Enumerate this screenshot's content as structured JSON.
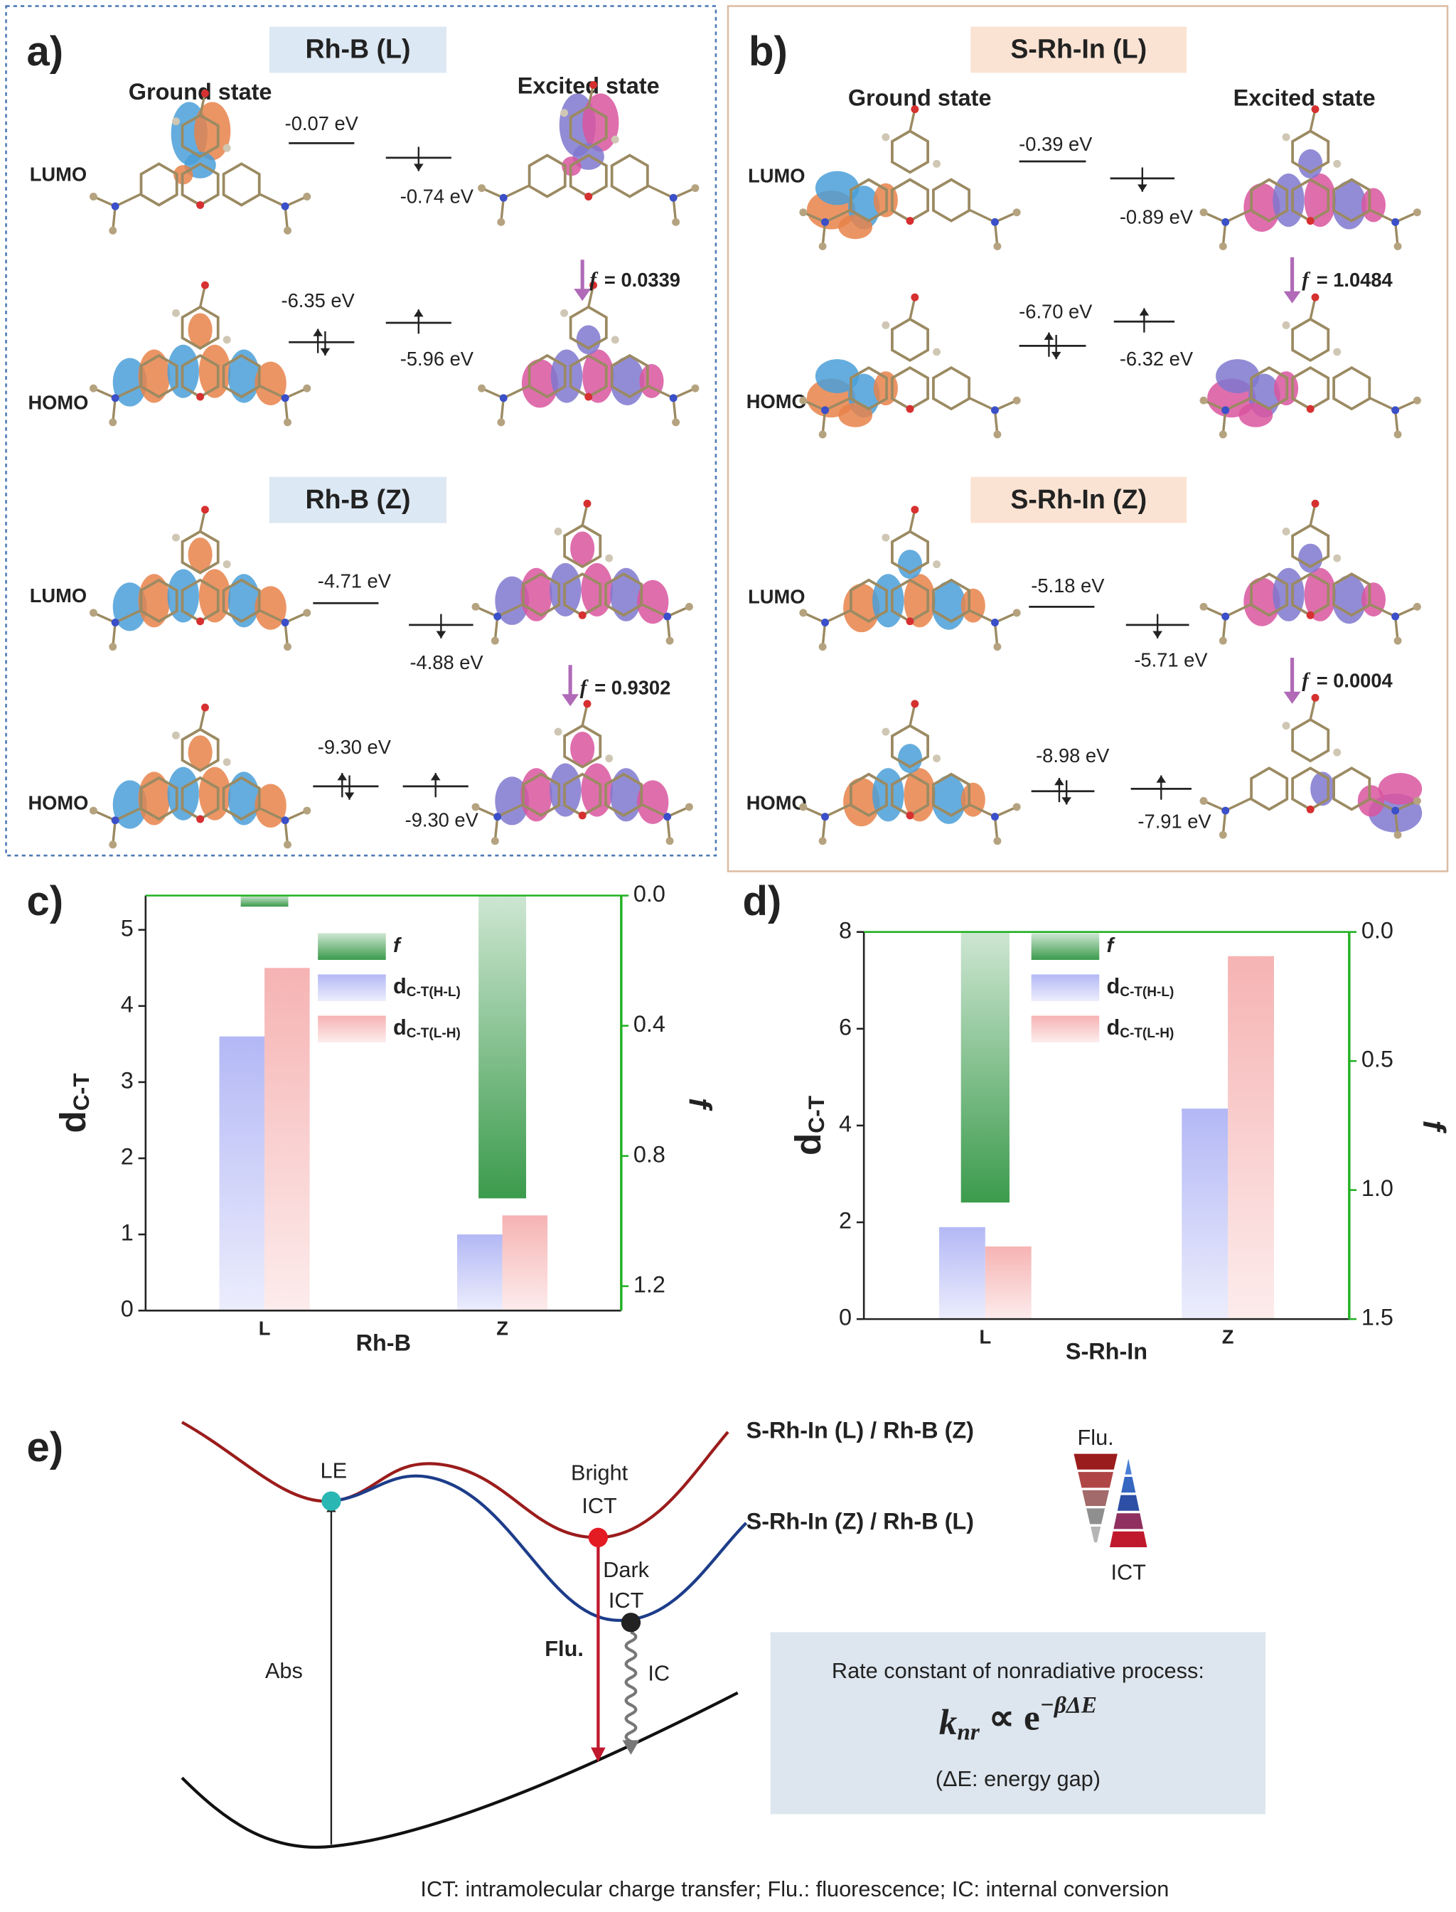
{
  "orbital_panels": [
    {
      "label": "a)",
      "ground_label": "Ground state",
      "excited_label": "Excited state",
      "sections": [
        {
          "title": "Rh-B (L)",
          "lumo_label": "LUMO",
          "homo_label": "HOMO",
          "ground_lumo": "-0.07 eV",
          "excited_lumo": "-0.74 eV",
          "ground_homo": "-6.35 eV",
          "excited_homo": "-5.96 eV",
          "f_symbol": "f",
          "f_text": "= 0.0339"
        },
        {
          "title": "Rh-B (Z)",
          "lumo_label": "LUMO",
          "homo_label": "HOMO",
          "ground_lumo": "-4.71 eV",
          "excited_lumo": "-4.88 eV",
          "ground_homo": "-9.30 eV",
          "excited_homo": "-9.30 eV",
          "f_symbol": "f",
          "f_text": "= 0.9302"
        }
      ]
    },
    {
      "label": "b)",
      "ground_label": "Ground state",
      "excited_label": "Excited state",
      "sections": [
        {
          "title": "S-Rh-In (L)",
          "lumo_label": "LUMO",
          "homo_label": "HOMO",
          "ground_lumo": "-0.39 eV",
          "excited_lumo": "-0.89 eV",
          "ground_homo": "-6.70 eV",
          "excited_homo": "-6.32 eV",
          "f_symbol": "f",
          "f_text": "= 1.0484"
        },
        {
          "title": "S-Rh-In (Z)",
          "lumo_label": "LUMO",
          "homo_label": "HOMO",
          "ground_lumo": "-5.18 eV",
          "excited_lumo": "-5.71 eV",
          "ground_homo": "-8.98 eV",
          "excited_homo": "-7.91 eV",
          "f_symbol": "f",
          "f_text": "= 0.0004"
        }
      ]
    }
  ],
  "chart_data": [
    {
      "type": "bar",
      "panel_label": "c)",
      "x_label": "Rh-B",
      "y_label": "dC-T",
      "y2_label": "f",
      "categories": [
        "L",
        "Z"
      ],
      "ylim": [
        0,
        5.45
      ],
      "yticks": [
        0,
        1,
        2,
        3,
        4,
        5
      ],
      "y2lim": [
        1.275,
        0
      ],
      "y2ticks": [
        {
          "value": 0,
          "label": "0.0"
        },
        0.4,
        0.8,
        1.2
      ],
      "y2_color": "#22b022",
      "series": [
        {
          "name": "f",
          "color": "#3b9b4c",
          "axis": "y2",
          "values": [
            0.0339,
            0.9302
          ]
        },
        {
          "name": "dC-T(H-L)",
          "color": "#b3b8f5",
          "values": [
            3.6,
            1.0
          ]
        },
        {
          "name": "dC-T(L-H)",
          "color": "#f6b3b3",
          "values": [
            4.5,
            1.25
          ]
        }
      ]
    },
    {
      "type": "bar",
      "panel_label": "d)",
      "x_label": "S-Rh-In",
      "y_label": "dC-T",
      "y2_label": "f",
      "categories": [
        "L",
        "Z"
      ],
      "ylim": [
        0,
        8
      ],
      "yticks": [
        0,
        2,
        4,
        6,
        8
      ],
      "y2lim": [
        1.5,
        0
      ],
      "y2ticks": [
        {
          "value": 0,
          "label": "0.0"
        },
        0.5,
        {
          "value": 1,
          "label": "1.0"
        },
        1.5
      ],
      "y2_color": "#22b022",
      "series": [
        {
          "name": "f",
          "color": "#3b9b4c",
          "axis": "y2",
          "values": [
            1.0484,
            0.0004
          ]
        },
        {
          "name": "dC-T(H-L)",
          "color": "#b3b8f5",
          "values": [
            1.9,
            4.35
          ]
        },
        {
          "name": "dC-T(L-H)",
          "color": "#f6b3b3",
          "values": [
            1.5,
            7.5
          ]
        }
      ]
    }
  ],
  "scheme": {
    "label": "e)",
    "upper_curve": "S-Rh-In (L) / Rh-B (Z)",
    "lower_curve": "S-Rh-In (Z) / Rh-B (L)",
    "le": "LE",
    "bright": [
      "Bright",
      "ICT"
    ],
    "dark": [
      "Dark",
      "ICT"
    ],
    "abs": "Abs",
    "flu": "Flu.",
    "ic": "IC",
    "legend_top": "Flu.",
    "legend_bottom": "ICT",
    "box": {
      "title": "Rate constant of nonradiative process:",
      "formula": {
        "base": "k",
        "sub": "nr",
        "rel": " ∝ e",
        "sup": "−βΔE"
      },
      "note": "(ΔE: energy gap)"
    },
    "footnote": "ICT: intramolecular charge transfer;  Flu.: fluorescence;  IC: internal conversion"
  }
}
